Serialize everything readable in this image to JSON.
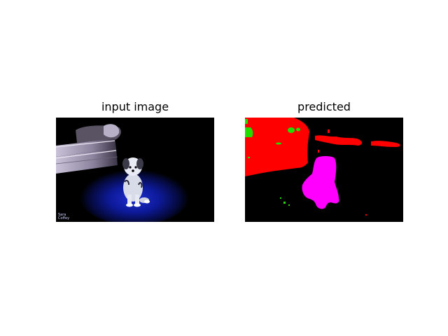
{
  "figure": {
    "panels": [
      {
        "title": "input image"
      },
      {
        "title": "predicted"
      }
    ],
    "watermark": {
      "line1": "Sara",
      "line2": "Coffey"
    },
    "colors": {
      "background": "#000000",
      "segment_red": "#ff0000",
      "segment_magenta": "#ff00ff",
      "segment_green": "#22dd00",
      "spotlight_blue": "#0a18a0"
    }
  }
}
